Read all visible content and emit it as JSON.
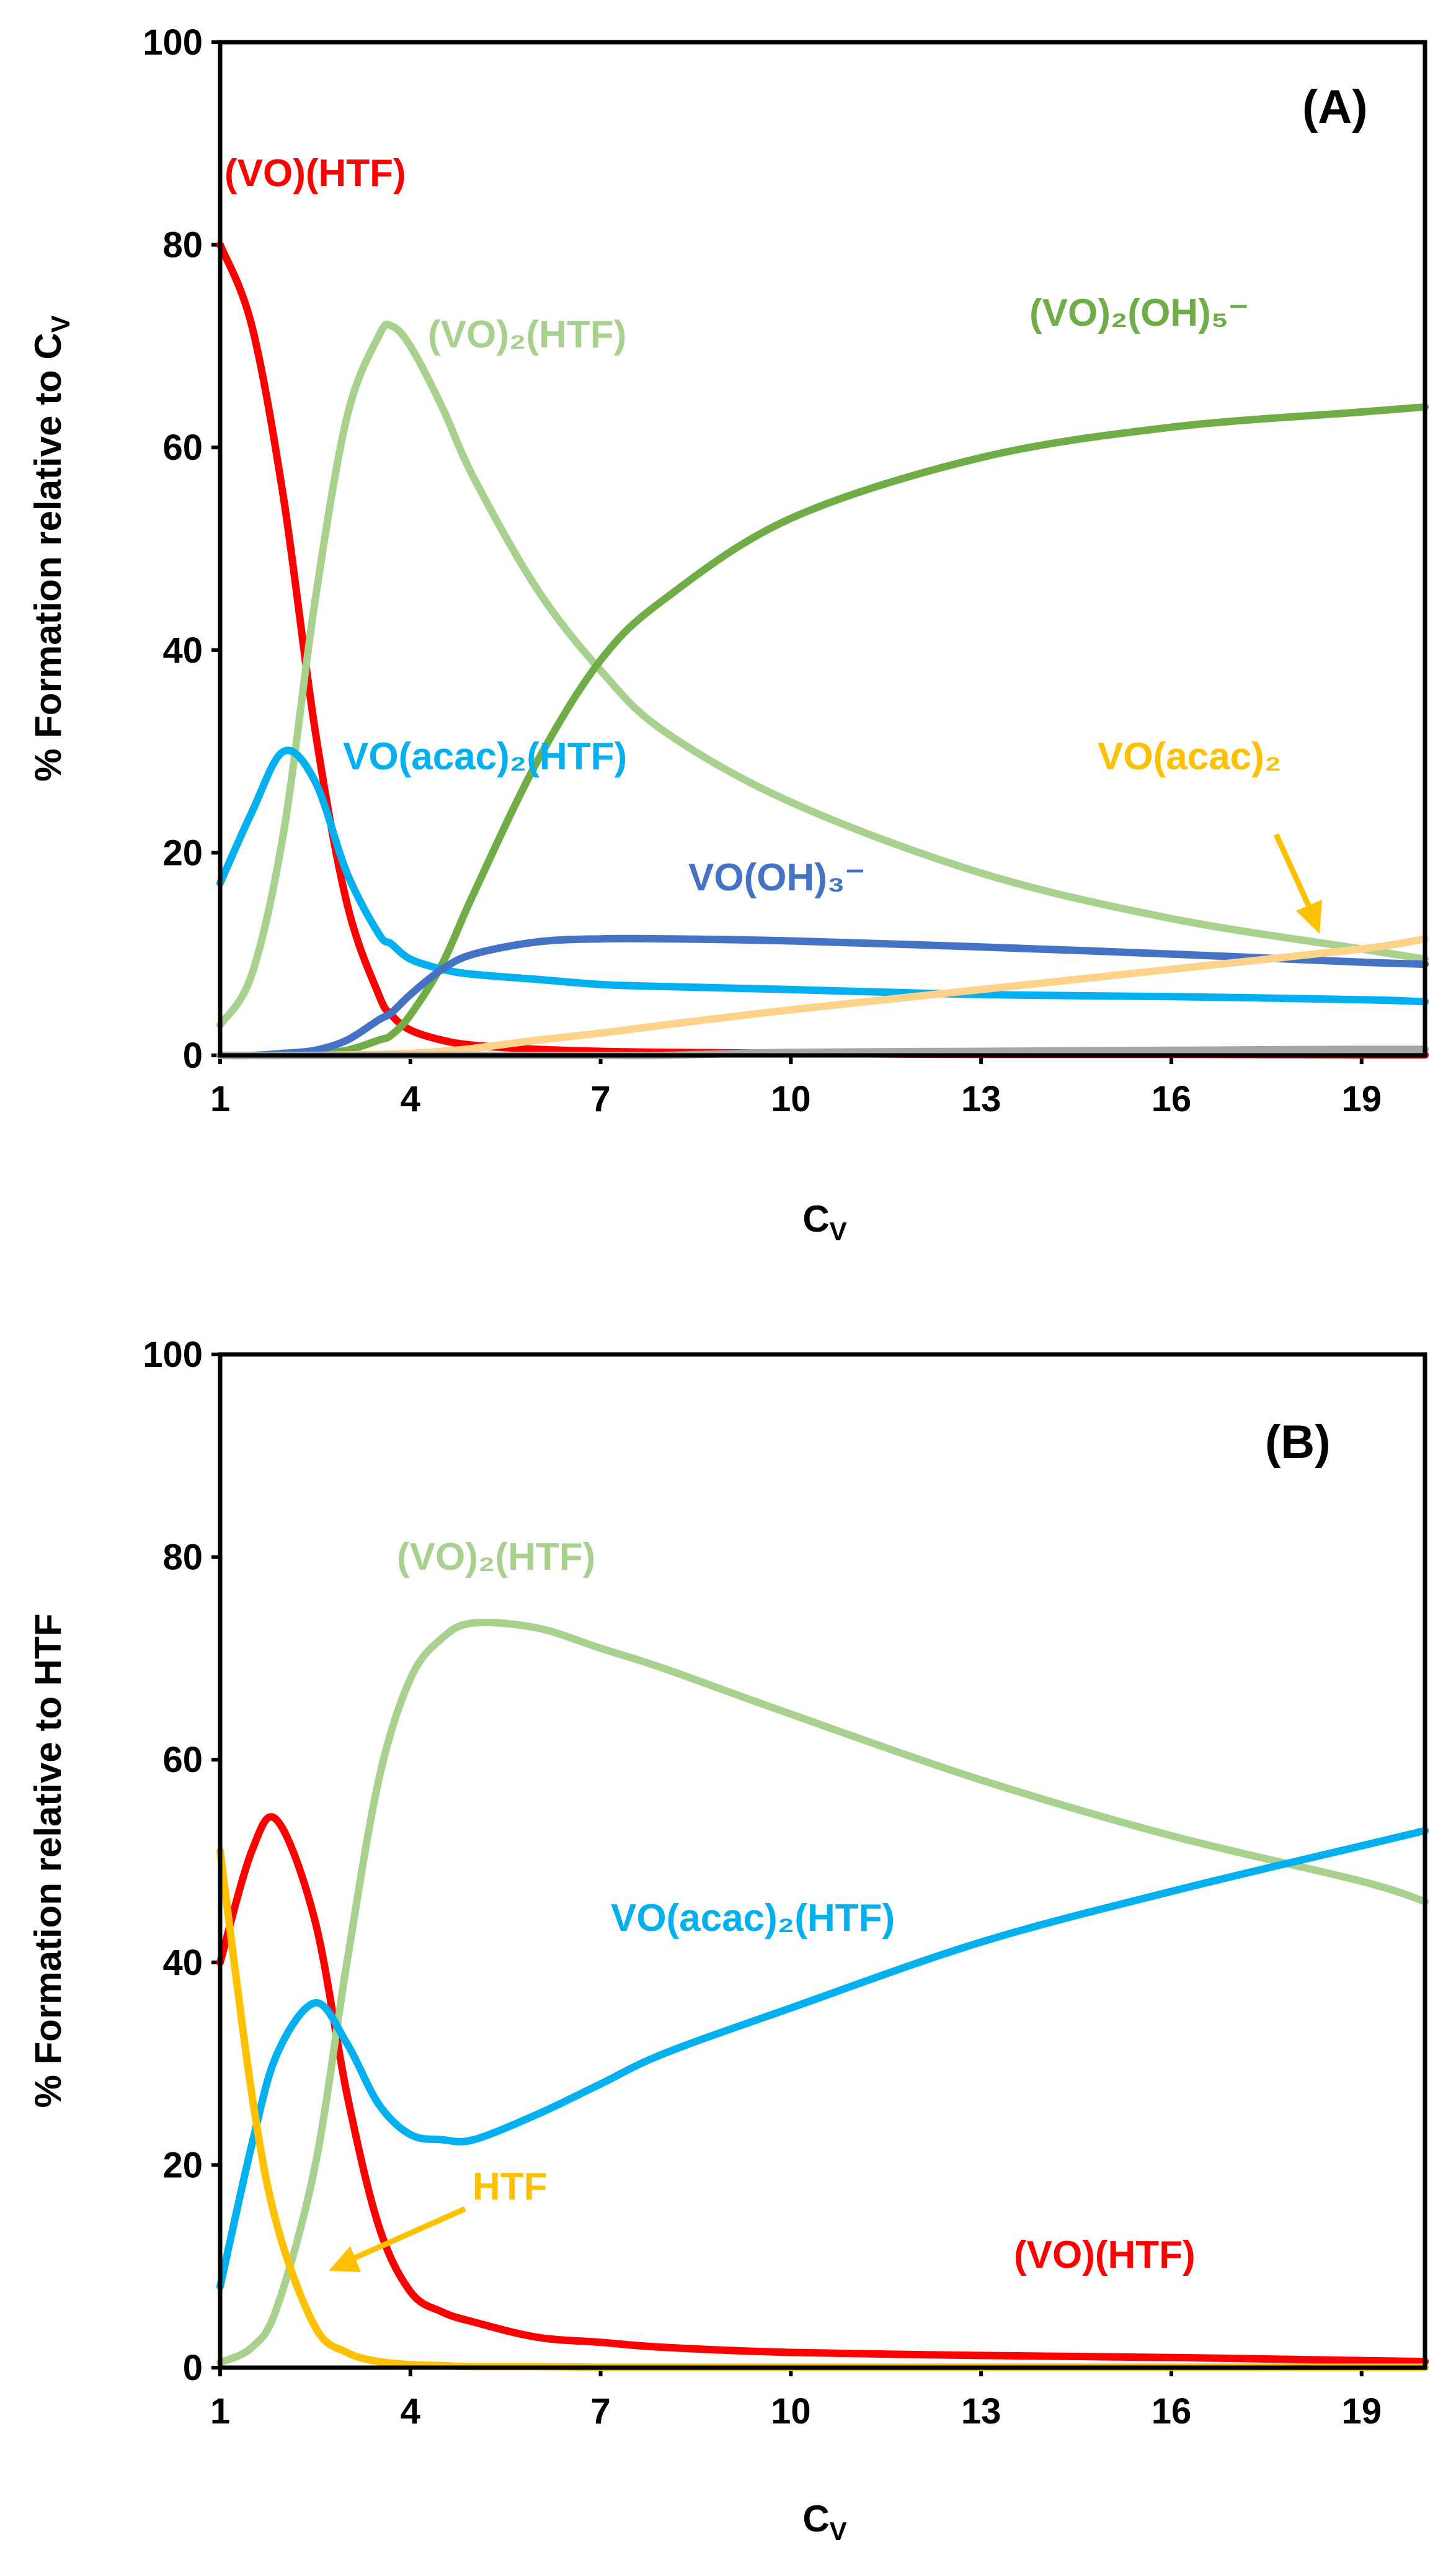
{
  "chart_data": [
    {
      "type": "line",
      "panel_label": "(A)",
      "xlabel": "C",
      "xlabel_sub": "V",
      "ylabel": "% Formation relative to C",
      "ylabel_sub": "V",
      "xlim": [
        1,
        20
      ],
      "ylim": [
        0,
        100
      ],
      "xticks": [
        1,
        4,
        7,
        10,
        13,
        16,
        19
      ],
      "yticks": [
        0,
        20,
        40,
        60,
        80,
        100
      ],
      "x": [
        1,
        1.5,
        2,
        2.5,
        3,
        3.5,
        3.7,
        4,
        4.5,
        5,
        6,
        7,
        8,
        10,
        13,
        16,
        19,
        20
      ],
      "series": [
        {
          "name": "(VO)(HTF)",
          "color": "#ff0000",
          "values": [
            80,
            72,
            55,
            32,
            15,
            6,
            4,
            2.5,
            1.5,
            1.0,
            0.6,
            0.4,
            0.3,
            0.2,
            0.1,
            0.1,
            0.05,
            0.05
          ]
        },
        {
          "name": "(VO)₂(HTF)",
          "color": "#a9d18e",
          "values": [
            3,
            8,
            22,
            45,
            63,
            71,
            72,
            70,
            64,
            57,
            46,
            38,
            32,
            25,
            18,
            13.5,
            10.5,
            9.5
          ]
        },
        {
          "name": "(VO)₂(OH)₅⁻",
          "color": "#70ad47",
          "values": [
            0,
            0,
            0,
            0.2,
            0.5,
            1.5,
            2,
            4,
            9,
            16,
            29,
            39,
            45,
            53,
            59,
            62,
            63.5,
            64
          ]
        },
        {
          "name": "VO(acac)₂(HTF)",
          "color": "#00b0f0",
          "values": [
            17,
            24,
            30,
            27,
            18,
            12,
            11,
            9.5,
            8.5,
            8,
            7.5,
            7,
            6.8,
            6.5,
            6,
            5.8,
            5.5,
            5.3
          ]
        },
        {
          "name": "VO(OH)₃⁻",
          "color": "#4472c4",
          "values": [
            0,
            0,
            0.2,
            0.5,
            1.5,
            3.5,
            4.2,
            6,
            8.5,
            10,
            11.2,
            11.5,
            11.5,
            11.3,
            10.7,
            10,
            9.2,
            9
          ]
        },
        {
          "name": "VO(acac)₂",
          "color": "#ffd28a",
          "values": [
            0,
            0,
            0,
            0,
            0.05,
            0.1,
            0.15,
            0.2,
            0.4,
            0.7,
            1.5,
            2.2,
            3,
            4.5,
            6.5,
            8.5,
            10.5,
            11.5
          ]
        },
        {
          "name": "other",
          "color": "#a6a6a6",
          "values": [
            0,
            0,
            0,
            0,
            0,
            0,
            0,
            0,
            0,
            0,
            0,
            0,
            0,
            0.3,
            0.4,
            0.5,
            0.6,
            0.6
          ]
        }
      ],
      "annotations": [
        {
          "text": "(VO)(HTF)",
          "series": 0
        },
        {
          "text": "(VO)₂(HTF)",
          "series": 1
        },
        {
          "text": "(VO)₂(OH)₅⁻",
          "series": 2
        },
        {
          "text": "VO(acac)₂(HTF)",
          "series": 3
        },
        {
          "text": "VO(OH)₃⁻",
          "series": 4
        },
        {
          "text": "VO(acac)₂",
          "series": 5,
          "arrow": true
        }
      ]
    },
    {
      "type": "line",
      "panel_label": "(B)",
      "xlabel": "C",
      "xlabel_sub": "V",
      "ylabel": "% Formation relative to HTF",
      "xlim": [
        1,
        20
      ],
      "ylim": [
        0,
        100
      ],
      "xticks": [
        1,
        4,
        7,
        10,
        13,
        16,
        19
      ],
      "yticks": [
        0,
        20,
        40,
        60,
        80,
        100
      ],
      "x": [
        1,
        1.5,
        1.9,
        2.5,
        3,
        3.5,
        4,
        4.5,
        5,
        6,
        7,
        8,
        10,
        13,
        16,
        19,
        20
      ],
      "series": [
        {
          "name": "(VO)(HTF)",
          "color": "#ff0000",
          "values": [
            40,
            51,
            54,
            44,
            27,
            14,
            7.5,
            5.5,
            4.5,
            3,
            2.5,
            2,
            1.5,
            1.2,
            1,
            0.7,
            0.6
          ]
        },
        {
          "name": "(VO)₂(HTF)",
          "color": "#a9d18e",
          "values": [
            0.5,
            2,
            6,
            20,
            40,
            58,
            68,
            72,
            73.5,
            73,
            71,
            69,
            64.5,
            58,
            52.5,
            48,
            46
          ]
        },
        {
          "name": "VO(acac)₂(HTF)",
          "color": "#00b0f0",
          "values": [
            8,
            22,
            31,
            36,
            32,
            26,
            23,
            22.5,
            22.5,
            25,
            28,
            31,
            35.5,
            42,
            47,
            51.5,
            53
          ]
        },
        {
          "name": "HTF",
          "color": "#ffc000",
          "values": [
            51,
            27,
            14,
            4,
            1.5,
            0.6,
            0.3,
            0.2,
            0.1,
            0.1,
            0.05,
            0.05,
            0.05,
            0.05,
            0.05,
            0.05,
            0.05
          ]
        }
      ],
      "annotations": [
        {
          "text": "(VO)₂(HTF)",
          "series": 1
        },
        {
          "text": "VO(acac)₂(HTF)",
          "series": 2
        },
        {
          "text": "HTF",
          "series": 3,
          "arrow": true
        },
        {
          "text": "(VO)(HTF)",
          "series": 0
        }
      ]
    }
  ]
}
